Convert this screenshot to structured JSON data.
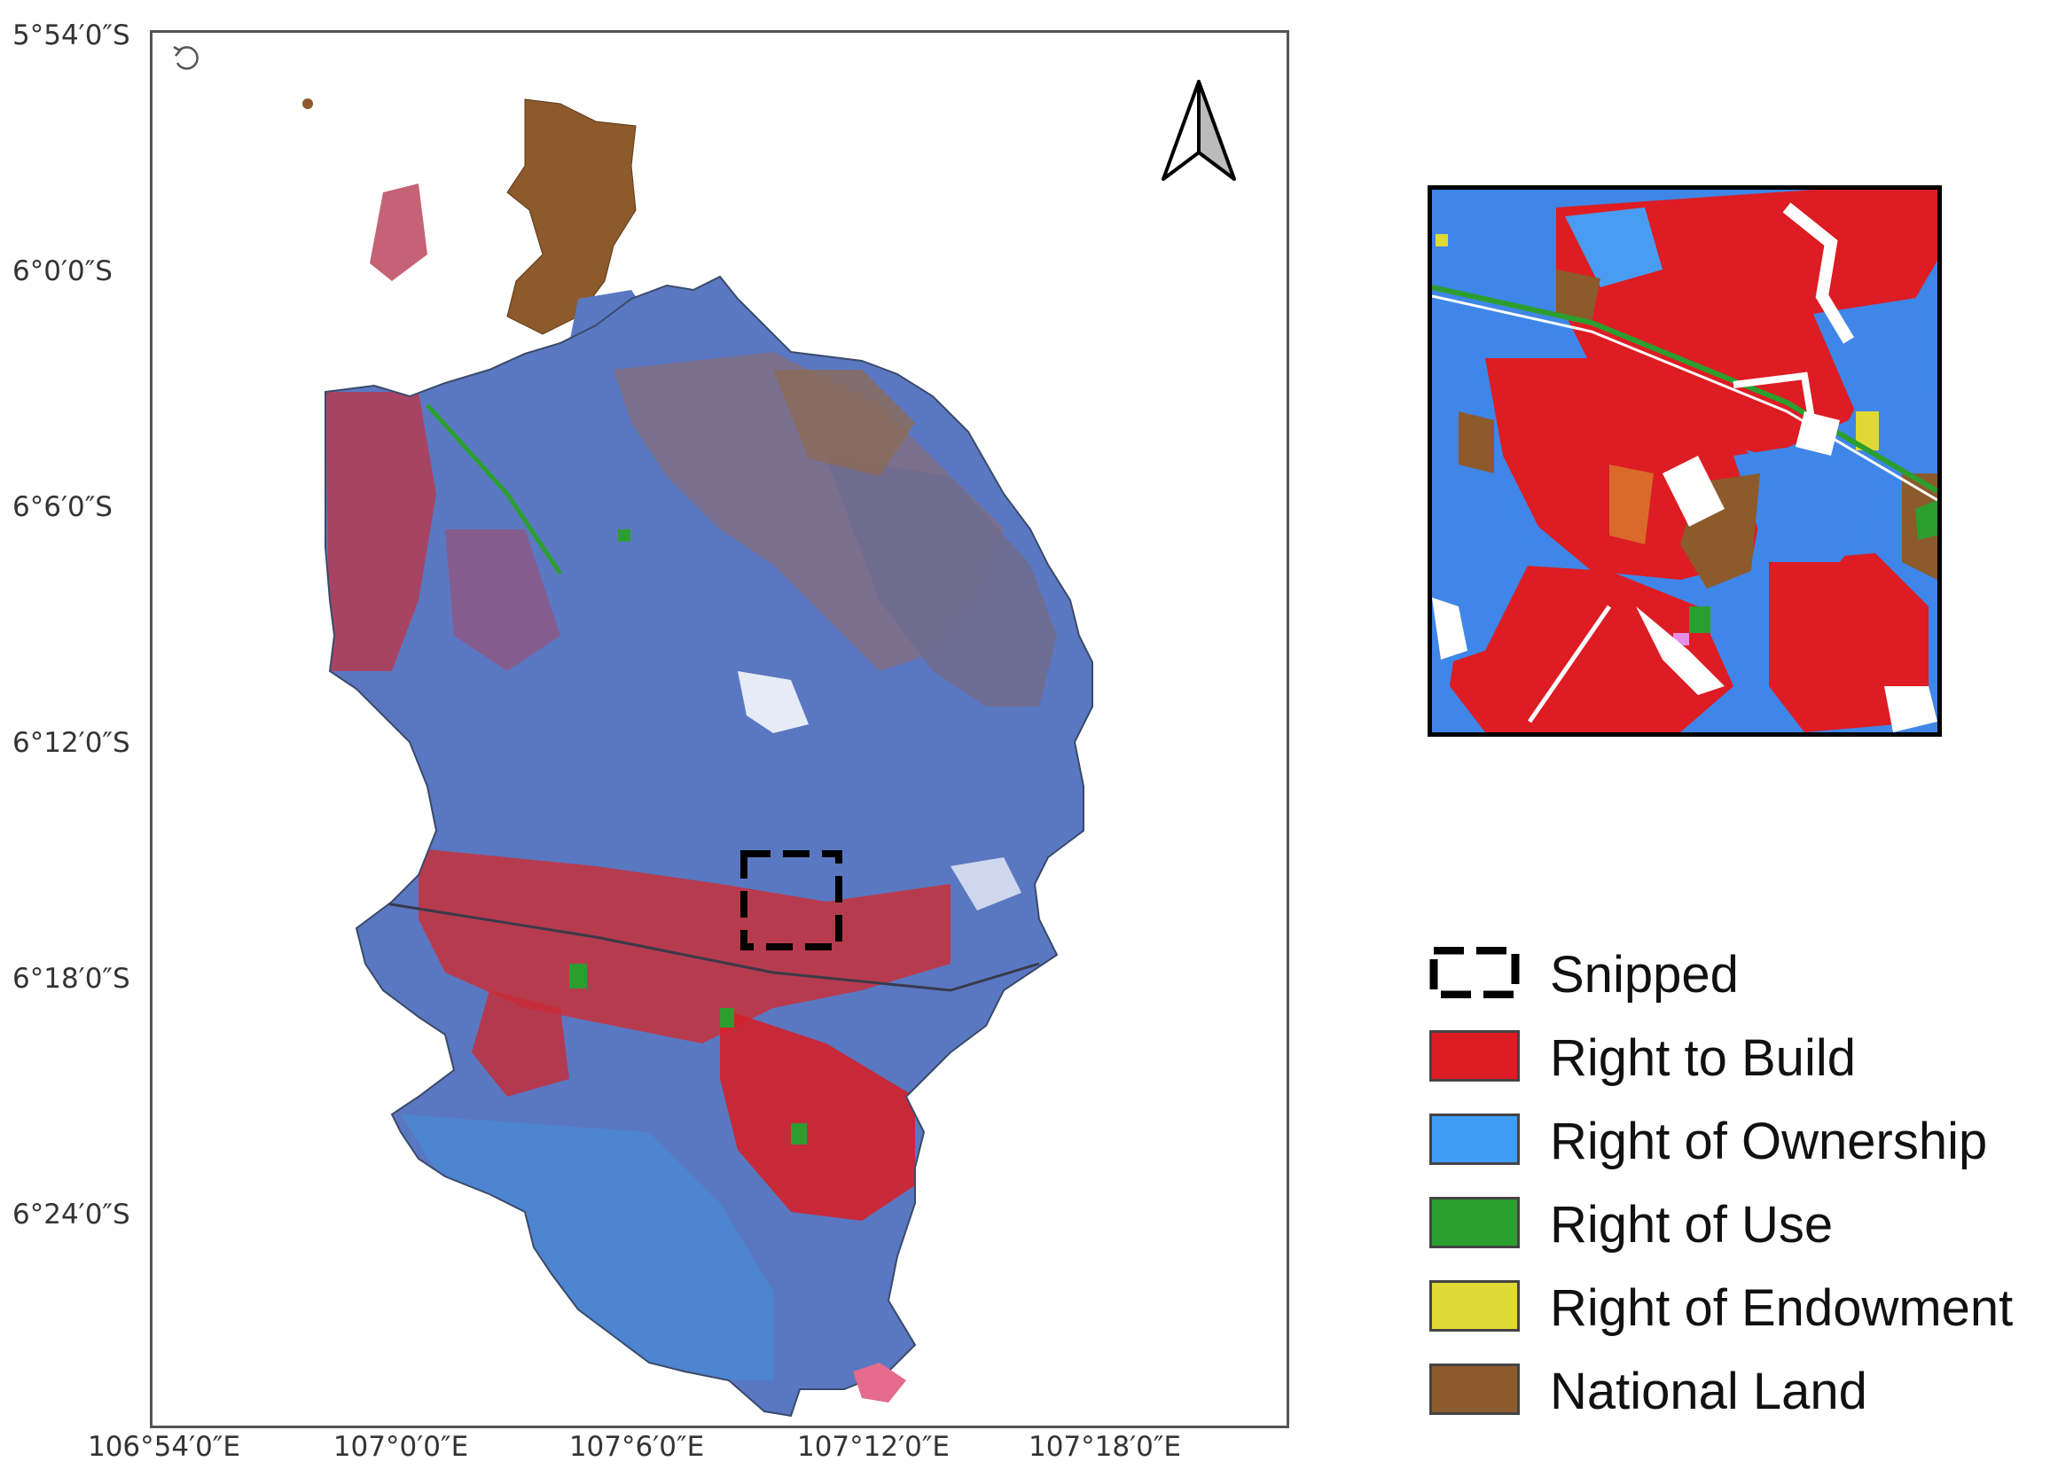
{
  "latitude_labels": [
    "5°54′0″S",
    "6°0′0″S",
    "6°6′0″S",
    "6°12′0″S",
    "6°18′0″S",
    "6°24′0″S"
  ],
  "longitude_labels": [
    "106°54′0″E",
    "107°0′0″E",
    "107°6′0″E",
    "107°12′0″E",
    "107°18′0″E"
  ],
  "north_arrow_icon": "north-arrow-icon",
  "refresh_icon": "refresh-icon",
  "legend": [
    {
      "label": "Snipped",
      "kind": "dashed-box",
      "color": "#000000"
    },
    {
      "label": "Right to Build",
      "kind": "fill",
      "color": "#dd1c23"
    },
    {
      "label": "Right of Ownership",
      "kind": "fill",
      "color": "#3f9cf5"
    },
    {
      "label": "Right of Use",
      "kind": "fill",
      "color": "#2c9e2f"
    },
    {
      "label": "Right of Endowment",
      "kind": "fill",
      "color": "#e0d834"
    },
    {
      "label": "National Land",
      "kind": "fill",
      "color": "#8c5a2b"
    }
  ],
  "colors": {
    "right_to_build": "#dd1c23",
    "right_of_ownership": "#3f9cf5",
    "right_of_use": "#2c9e2f",
    "right_of_endowment": "#e0d834",
    "national_land": "#8c5a2b",
    "blended_region": "#5a78c2"
  }
}
